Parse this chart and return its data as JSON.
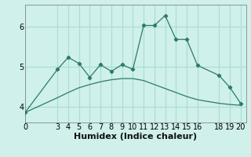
{
  "xlabel": "Humidex (Indice chaleur)",
  "bg_color": "#cff0eb",
  "line_color": "#2d7a6a",
  "grid_color": "#aaddd6",
  "zigzag_x": [
    0,
    3,
    4,
    5,
    6,
    7,
    8,
    9,
    10,
    11,
    12,
    13,
    14,
    15,
    16,
    18,
    19,
    20
  ],
  "zigzag_y": [
    3.85,
    4.93,
    5.23,
    5.08,
    4.73,
    5.05,
    4.88,
    5.05,
    4.93,
    6.03,
    6.03,
    6.28,
    5.68,
    5.68,
    5.03,
    4.78,
    4.48,
    4.08
  ],
  "trend_x": [
    0,
    3,
    4,
    5,
    6,
    7,
    8,
    9,
    10,
    11,
    12,
    13,
    14,
    15,
    16,
    18,
    19,
    20
  ],
  "trend_y": [
    3.85,
    4.22,
    4.35,
    4.47,
    4.55,
    4.62,
    4.67,
    4.7,
    4.7,
    4.65,
    4.55,
    4.45,
    4.35,
    4.25,
    4.17,
    4.08,
    4.05,
    4.03
  ],
  "xlim": [
    0,
    20.5
  ],
  "ylim": [
    3.6,
    6.55
  ],
  "xticks": [
    0,
    3,
    4,
    5,
    6,
    7,
    8,
    9,
    10,
    11,
    12,
    13,
    14,
    15,
    16,
    18,
    19,
    20
  ],
  "yticks": [
    4,
    5,
    6
  ],
  "tick_fontsize": 7,
  "label_fontsize": 8
}
